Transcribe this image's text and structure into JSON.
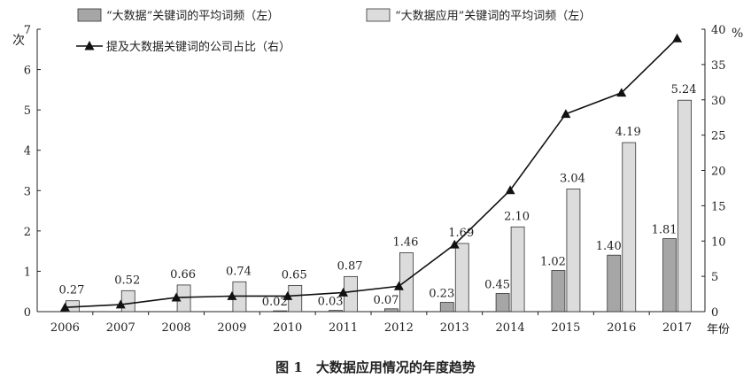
{
  "caption": "图 1　大数据应用情况的年度趋势",
  "chart_data": {
    "type": "bar",
    "categories": [
      "2006",
      "2007",
      "2008",
      "2009",
      "2010",
      "2011",
      "2012",
      "2013",
      "2014",
      "2015",
      "2016",
      "2017"
    ],
    "xlabel": "年份",
    "ylabel_left": "次",
    "ylabel_right": "%",
    "ylim_left": [
      0,
      7
    ],
    "ylim_right": [
      0,
      40
    ],
    "yticks_left": [
      "0",
      "1",
      "2",
      "3",
      "4",
      "5",
      "6",
      "7"
    ],
    "yticks_right": [
      "0",
      "5",
      "10",
      "15",
      "20",
      "25",
      "30",
      "35",
      "40"
    ],
    "grid": false,
    "legend_position": "top",
    "series": [
      {
        "name": "“大数据”关键词的平均词频（左）",
        "type": "bar",
        "axis": "left",
        "color": "#a6a6a6",
        "values": [
          0,
          0,
          0,
          0,
          0.02,
          0.03,
          0.07,
          0.23,
          0.45,
          1.02,
          1.4,
          1.81
        ],
        "labels": [
          "",
          "",
          "",
          "",
          "0.02",
          "0.03",
          "0.07",
          "0.23",
          "0.45",
          "1.02",
          "1.40",
          "1.81"
        ]
      },
      {
        "name": "“大数据应用”关键词的平均词频（左）",
        "type": "bar",
        "axis": "left",
        "color": "#dcdcdc",
        "values": [
          0.27,
          0.52,
          0.66,
          0.74,
          0.65,
          0.87,
          1.46,
          1.69,
          2.1,
          3.04,
          4.19,
          5.24
        ],
        "labels": [
          "0.27",
          "0.52",
          "0.66",
          "0.74",
          "0.65",
          "0.87",
          "1.46",
          "1.69",
          "2.10",
          "3.04",
          "4.19",
          "5.24"
        ]
      },
      {
        "name": "提及大数据关键词的公司占比（右）",
        "type": "line",
        "axis": "right",
        "color": "#111111",
        "values": [
          0.6,
          1.0,
          2.0,
          2.2,
          2.2,
          2.7,
          3.6,
          9.5,
          17.2,
          28.0,
          31.0,
          38.7
        ]
      }
    ]
  }
}
